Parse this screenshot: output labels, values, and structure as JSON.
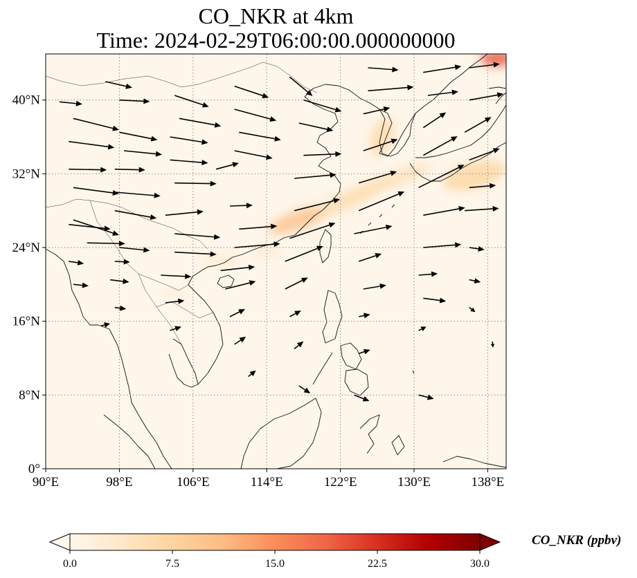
{
  "title": {
    "line1": "CO_NKR at 4km",
    "line2": "Time: 2024-02-29T06:00:00.000000000"
  },
  "colors": {
    "background": "#fef6ea",
    "coast": "#111111",
    "gridline": "#8a8a8a",
    "arrow": "#000000"
  },
  "map": {
    "lon_range": [
      90,
      140
    ],
    "lat_range": [
      0,
      45
    ],
    "x_ticks": [
      {
        "value": 90,
        "label": "90°E"
      },
      {
        "value": 98,
        "label": "98°E"
      },
      {
        "value": 106,
        "label": "106°E"
      },
      {
        "value": 114,
        "label": "114°E"
      },
      {
        "value": 122,
        "label": "122°E"
      },
      {
        "value": 130,
        "label": "130°E"
      },
      {
        "value": 138,
        "label": "138°E"
      }
    ],
    "y_ticks": [
      {
        "value": 0,
        "label": "0°"
      },
      {
        "value": 8,
        "label": "8°N"
      },
      {
        "value": 16,
        "label": "16°N"
      },
      {
        "value": 24,
        "label": "24°N"
      },
      {
        "value": 32,
        "label": "32°N"
      },
      {
        "value": 40,
        "label": "40°N"
      }
    ],
    "gridlines": "dotted"
  },
  "colorbar": {
    "title": "CO_NKR (ppbv)",
    "min": 0.0,
    "max": 30.0,
    "ticks": [
      {
        "value": 0,
        "label": "0.0"
      },
      {
        "value": 7.5,
        "label": "7.5"
      },
      {
        "value": 15,
        "label": "15.0"
      },
      {
        "value": 22.5,
        "label": "22.5"
      },
      {
        "value": 30,
        "label": "30.0"
      }
    ],
    "colormap": "OrRd",
    "stops": [
      "#fff7ec",
      "#fee8c8",
      "#fdd49e",
      "#fdbb84",
      "#fc8d59",
      "#ef6548",
      "#d7301f",
      "#b30000",
      "#7f0000"
    ],
    "extend": "both"
  },
  "plumes": [
    {
      "lon": 117.5,
      "lat": 27.0,
      "rx": 3.5,
      "ry": 1.0,
      "rot": -20,
      "value": 10
    },
    {
      "lon": 123.5,
      "lat": 29.5,
      "rx": 4.5,
      "ry": 0.9,
      "rot": -25,
      "value": 6
    },
    {
      "lon": 128.0,
      "lat": 31.5,
      "rx": 4.0,
      "ry": 0.8,
      "rot": -20,
      "value": 5
    },
    {
      "lon": 136.5,
      "lat": 31.8,
      "rx": 3.5,
      "ry": 1.4,
      "rot": -15,
      "value": 7
    },
    {
      "lon": 126.5,
      "lat": 36.0,
      "rx": 1.2,
      "ry": 2.2,
      "rot": 20,
      "value": 6
    },
    {
      "lon": 139.0,
      "lat": 44.5,
      "rx": 1.8,
      "ry": 0.8,
      "rot": 0,
      "value": 20
    },
    {
      "lon": 109.0,
      "lat": 22.5,
      "rx": 2.0,
      "ry": 0.6,
      "rot": 0,
      "value": 3
    },
    {
      "lon": 114.0,
      "lat": 23.5,
      "rx": 1.5,
      "ry": 0.5,
      "rot": 0,
      "value": 3
    },
    {
      "lon": 104.0,
      "lat": 19.0,
      "rx": 1.2,
      "ry": 0.6,
      "rot": 0,
      "value": 2
    }
  ],
  "wind_vectors": [
    {
      "lon": 91.5,
      "lat": 39.8,
      "u": 3.0,
      "v": -0.3
    },
    {
      "lon": 93.0,
      "lat": 38.0,
      "u": 6.0,
      "v": -1.5
    },
    {
      "lon": 92.5,
      "lat": 35.5,
      "u": 6.0,
      "v": -0.8
    },
    {
      "lon": 92.5,
      "lat": 32.5,
      "u": 5.0,
      "v": -0.1
    },
    {
      "lon": 93.0,
      "lat": 30.5,
      "u": 6.0,
      "v": -0.8
    },
    {
      "lon": 93.0,
      "lat": 27.0,
      "u": 6.0,
      "v": -2.0
    },
    {
      "lon": 92.5,
      "lat": 26.5,
      "u": 5.5,
      "v": -0.6
    },
    {
      "lon": 94.5,
      "lat": 24.5,
      "u": 5.0,
      "v": -0.1
    },
    {
      "lon": 92.5,
      "lat": 22.5,
      "u": 2.0,
      "v": -0.3
    },
    {
      "lon": 93.0,
      "lat": 20.0,
      "u": 2.0,
      "v": -0.2
    },
    {
      "lon": 96.5,
      "lat": 42.0,
      "u": 3.5,
      "v": -0.8
    },
    {
      "lon": 98.0,
      "lat": 40.0,
      "u": 4.0,
      "v": -0.2
    },
    {
      "lon": 98.0,
      "lat": 36.5,
      "u": 5.0,
      "v": -1.0
    },
    {
      "lon": 98.5,
      "lat": 34.5,
      "u": 5.0,
      "v": -0.5
    },
    {
      "lon": 97.5,
      "lat": 32.5,
      "u": 4.0,
      "v": -0.1
    },
    {
      "lon": 97.5,
      "lat": 30.0,
      "u": 6.0,
      "v": -0.5
    },
    {
      "lon": 97.5,
      "lat": 28.0,
      "u": 5.5,
      "v": -1.0
    },
    {
      "lon": 98.0,
      "lat": 24.0,
      "u": 4.0,
      "v": -0.4
    },
    {
      "lon": 97.5,
      "lat": 22.5,
      "u": 2.0,
      "v": -0.1
    },
    {
      "lon": 97.0,
      "lat": 20.5,
      "u": 2.5,
      "v": -0.3
    },
    {
      "lon": 97.5,
      "lat": 17.5,
      "u": 1.5,
      "v": -0.2
    },
    {
      "lon": 96.0,
      "lat": 15.5,
      "u": 1.2,
      "v": 0.3
    },
    {
      "lon": 104.0,
      "lat": 40.5,
      "u": 4.5,
      "v": -1.5
    },
    {
      "lon": 104.5,
      "lat": 38.0,
      "u": 5.5,
      "v": -1.0
    },
    {
      "lon": 103.5,
      "lat": 36.0,
      "u": 5.0,
      "v": -0.8
    },
    {
      "lon": 103.5,
      "lat": 33.5,
      "u": 5.0,
      "v": -0.4
    },
    {
      "lon": 104.0,
      "lat": 31.0,
      "u": 5.5,
      "v": -0.1
    },
    {
      "lon": 103.0,
      "lat": 27.5,
      "u": 5.0,
      "v": 0.5
    },
    {
      "lon": 104.0,
      "lat": 25.5,
      "u": 6.0,
      "v": -0.5
    },
    {
      "lon": 104.0,
      "lat": 23.5,
      "u": 5.5,
      "v": -0.3
    },
    {
      "lon": 102.5,
      "lat": 21.0,
      "u": 4.0,
      "v": -0.2
    },
    {
      "lon": 103.0,
      "lat": 18.0,
      "u": 2.5,
      "v": 0.3
    },
    {
      "lon": 103.5,
      "lat": 15.0,
      "u": 1.5,
      "v": 0.5
    },
    {
      "lon": 110.5,
      "lat": 41.5,
      "u": 4.5,
      "v": -1.5
    },
    {
      "lon": 110.5,
      "lat": 39.0,
      "u": 5.5,
      "v": -1.5
    },
    {
      "lon": 111.0,
      "lat": 36.5,
      "u": 5.5,
      "v": -1.0
    },
    {
      "lon": 110.5,
      "lat": 34.5,
      "u": 5.0,
      "v": -1.0
    },
    {
      "lon": 108.5,
      "lat": 32.5,
      "u": 3.0,
      "v": 0.8
    },
    {
      "lon": 110.0,
      "lat": 28.5,
      "u": 3.0,
      "v": 0.1
    },
    {
      "lon": 111.0,
      "lat": 26.0,
      "u": 5.0,
      "v": 0.4
    },
    {
      "lon": 110.5,
      "lat": 24.0,
      "u": 6.0,
      "v": 0.5
    },
    {
      "lon": 109.0,
      "lat": 21.5,
      "u": 4.5,
      "v": 0.5
    },
    {
      "lon": 109.5,
      "lat": 19.5,
      "u": 4.0,
      "v": 1.0
    },
    {
      "lon": 110.0,
      "lat": 16.5,
      "u": 2.0,
      "v": 1.0
    },
    {
      "lon": 110.5,
      "lat": 13.5,
      "u": 1.5,
      "v": 1.0
    },
    {
      "lon": 112.0,
      "lat": 10.0,
      "u": 1.0,
      "v": 0.8
    },
    {
      "lon": 116.5,
      "lat": 42.5,
      "u": 3.0,
      "v": -2.5
    },
    {
      "lon": 118.0,
      "lat": 40.0,
      "u": 5.0,
      "v": -1.5
    },
    {
      "lon": 117.5,
      "lat": 37.5,
      "u": 4.5,
      "v": -1.0
    },
    {
      "lon": 118.0,
      "lat": 34.0,
      "u": 5.0,
      "v": 0.2
    },
    {
      "lon": 117.0,
      "lat": 31.5,
      "u": 5.5,
      "v": 0.5
    },
    {
      "lon": 117.0,
      "lat": 28.0,
      "u": 6.0,
      "v": 1.5
    },
    {
      "lon": 116.5,
      "lat": 25.0,
      "u": 6.0,
      "v": 2.0
    },
    {
      "lon": 116.0,
      "lat": 22.5,
      "u": 5.0,
      "v": 2.0
    },
    {
      "lon": 116.0,
      "lat": 19.5,
      "u": 3.0,
      "v": 1.5
    },
    {
      "lon": 116.5,
      "lat": 16.5,
      "u": 1.5,
      "v": 0.8
    },
    {
      "lon": 117.0,
      "lat": 13.0,
      "u": 1.2,
      "v": 1.0
    },
    {
      "lon": 117.5,
      "lat": 9.0,
      "u": 1.5,
      "v": -1.0
    },
    {
      "lon": 125.0,
      "lat": 43.5,
      "u": 4.0,
      "v": -0.3
    },
    {
      "lon": 125.0,
      "lat": 41.0,
      "u": 6.0,
      "v": 0.5
    },
    {
      "lon": 124.5,
      "lat": 38.5,
      "u": 3.5,
      "v": 0.8
    },
    {
      "lon": 124.5,
      "lat": 34.5,
      "u": 4.5,
      "v": 1.5
    },
    {
      "lon": 124.0,
      "lat": 31.0,
      "u": 5.0,
      "v": 1.5
    },
    {
      "lon": 124.0,
      "lat": 28.0,
      "u": 6.0,
      "v": 2.5
    },
    {
      "lon": 123.5,
      "lat": 25.5,
      "u": 5.0,
      "v": 1.0
    },
    {
      "lon": 124.0,
      "lat": 22.5,
      "u": 3.0,
      "v": 1.0
    },
    {
      "lon": 124.5,
      "lat": 19.5,
      "u": 3.0,
      "v": 0.5
    },
    {
      "lon": 124.0,
      "lat": 16.5,
      "u": 1.5,
      "v": 0.3
    },
    {
      "lon": 124.0,
      "lat": 12.5,
      "u": 1.5,
      "v": 0.5
    },
    {
      "lon": 123.5,
      "lat": 8.0,
      "u": 2.0,
      "v": -0.8
    },
    {
      "lon": 131.0,
      "lat": 43.0,
      "u": 5.0,
      "v": 0.8
    },
    {
      "lon": 131.5,
      "lat": 40.5,
      "u": 4.0,
      "v": 0.5
    },
    {
      "lon": 131.0,
      "lat": 37.0,
      "u": 3.0,
      "v": 2.0
    },
    {
      "lon": 131.0,
      "lat": 34.0,
      "u": 4.5,
      "v": 2.5
    },
    {
      "lon": 130.5,
      "lat": 30.5,
      "u": 6.0,
      "v": 3.0
    },
    {
      "lon": 131.0,
      "lat": 27.5,
      "u": 5.5,
      "v": 1.0
    },
    {
      "lon": 131.0,
      "lat": 24.0,
      "u": 5.0,
      "v": 0.4
    },
    {
      "lon": 130.5,
      "lat": 21.0,
      "u": 2.5,
      "v": 0.2
    },
    {
      "lon": 131.0,
      "lat": 18.5,
      "u": 3.0,
      "v": -0.4
    },
    {
      "lon": 130.5,
      "lat": 15.0,
      "u": 1.0,
      "v": 0.5
    },
    {
      "lon": 130.5,
      "lat": 8.0,
      "u": 2.0,
      "v": -0.5
    },
    {
      "lon": 136.0,
      "lat": 43.5,
      "u": 4.0,
      "v": 0.5
    },
    {
      "lon": 136.0,
      "lat": 40.0,
      "u": 4.5,
      "v": 0.8
    },
    {
      "lon": 135.5,
      "lat": 36.5,
      "u": 3.5,
      "v": 2.0
    },
    {
      "lon": 136.0,
      "lat": 33.5,
      "u": 4.0,
      "v": 1.5
    },
    {
      "lon": 136.0,
      "lat": 30.5,
      "u": 3.5,
      "v": 0.3
    },
    {
      "lon": 135.5,
      "lat": 28.0,
      "u": 4.5,
      "v": 0.3
    },
    {
      "lon": 136.0,
      "lat": 24.0,
      "u": 2.0,
      "v": -0.3
    },
    {
      "lon": 136.0,
      "lat": 20.5,
      "u": 1.5,
      "v": -0.3
    },
    {
      "lon": 136.0,
      "lat": 17.5,
      "u": 0.8,
      "v": -0.6
    },
    {
      "lon": 138.5,
      "lat": 13.8,
      "u": 0.1,
      "v": -0.8
    }
  ]
}
